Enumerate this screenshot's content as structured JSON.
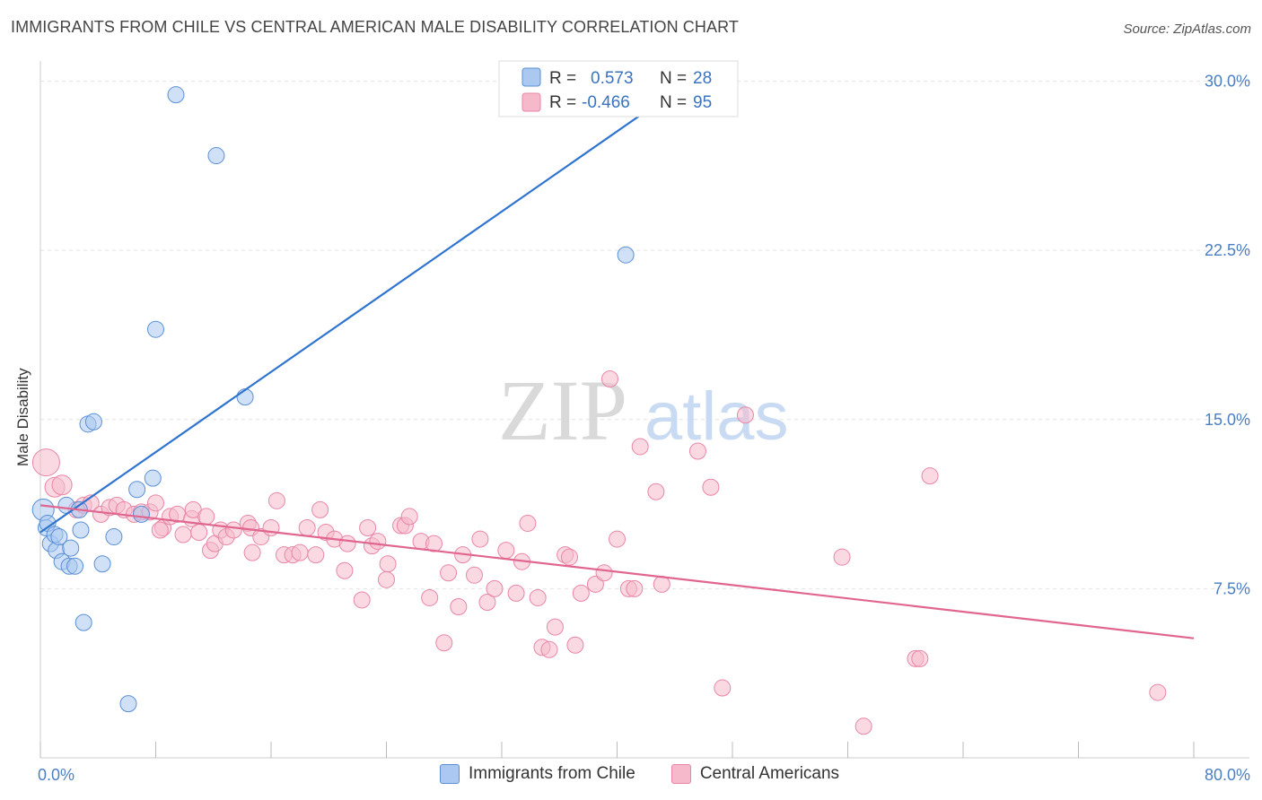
{
  "title": "IMMIGRANTS FROM CHILE VS CENTRAL AMERICAN MALE DISABILITY CORRELATION CHART",
  "source": "Source: ZipAtlas.com",
  "watermark": {
    "zip": "ZIP",
    "atlas": "atlas"
  },
  "legend_top": {
    "rows": [
      {
        "r_label": "R =",
        "r_value": "0.573",
        "n_label": "N =",
        "n_value": "28"
      },
      {
        "r_label": "R =",
        "r_value": "-0.466",
        "n_label": "N =",
        "n_value": "95"
      }
    ]
  },
  "legend_bottom": [
    {
      "label": "Immigrants from Chile"
    },
    {
      "label": "Central Americans"
    }
  ],
  "colors": {
    "chile_fill": "#aac8f0",
    "chile_stroke": "#5a8fd6",
    "chile_line": "#2f74d0",
    "central_fill": "#f6b9cc",
    "central_stroke": "#e986a6",
    "central_line": "#e0668f",
    "axis_text": "#4a7fc4",
    "grid": "#e3e3e3"
  },
  "chart_data": {
    "type": "scatter",
    "xlabel": "",
    "ylabel": "Male Disability",
    "xlim": [
      0,
      80
    ],
    "ylim": [
      0,
      30.5
    ],
    "x_tick_labels": [
      {
        "value": 0,
        "label": "0.0%"
      },
      {
        "value": 80,
        "label": "80.0%"
      }
    ],
    "y_tick_labels": [
      {
        "value": 7.5,
        "label": "7.5%"
      },
      {
        "value": 15,
        "label": "15.0%"
      },
      {
        "value": 22.5,
        "label": "22.5%"
      },
      {
        "value": 30,
        "label": "30.0%"
      }
    ],
    "grid": true,
    "series": [
      {
        "name": "Immigrants from Chile",
        "r": 0.573,
        "n": 28,
        "trend": [
          [
            0,
            10.0
          ],
          [
            45,
            30.0
          ]
        ],
        "points": [
          [
            0.2,
            11.0
          ],
          [
            0.4,
            10.2
          ],
          [
            0.5,
            10.4
          ],
          [
            0.7,
            9.5
          ],
          [
            1.0,
            9.9
          ],
          [
            1.1,
            9.2
          ],
          [
            1.3,
            9.8
          ],
          [
            1.5,
            8.7
          ],
          [
            1.8,
            11.2
          ],
          [
            2.0,
            8.5
          ],
          [
            2.1,
            9.3
          ],
          [
            2.4,
            8.5
          ],
          [
            2.7,
            11.0
          ],
          [
            2.8,
            10.1
          ],
          [
            3.0,
            6.0
          ],
          [
            3.3,
            14.8
          ],
          [
            3.7,
            14.9
          ],
          [
            4.3,
            8.6
          ],
          [
            5.1,
            9.8
          ],
          [
            6.7,
            11.9
          ],
          [
            7.0,
            10.8
          ],
          [
            6.1,
            2.4
          ],
          [
            7.8,
            12.4
          ],
          [
            8.0,
            19.0
          ],
          [
            9.4,
            29.4
          ],
          [
            12.2,
            26.7
          ],
          [
            14.2,
            16.0
          ],
          [
            40.6,
            22.3
          ]
        ]
      },
      {
        "name": "Central Americans",
        "r": -0.466,
        "n": 95,
        "trend": [
          [
            0,
            11.2
          ],
          [
            80,
            5.3
          ]
        ],
        "points": [
          [
            0.4,
            13.1
          ],
          [
            1.0,
            12.0
          ],
          [
            1.5,
            12.1
          ],
          [
            2.5,
            11.0
          ],
          [
            3.0,
            11.2
          ],
          [
            3.5,
            11.3
          ],
          [
            4.2,
            10.8
          ],
          [
            4.8,
            11.1
          ],
          [
            5.3,
            11.2
          ],
          [
            5.8,
            11.0
          ],
          [
            6.5,
            10.8
          ],
          [
            7.0,
            10.9
          ],
          [
            7.6,
            10.9
          ],
          [
            8.0,
            11.3
          ],
          [
            8.5,
            10.2
          ],
          [
            8.3,
            10.1
          ],
          [
            9.0,
            10.7
          ],
          [
            9.5,
            10.8
          ],
          [
            9.9,
            9.9
          ],
          [
            10.5,
            10.6
          ],
          [
            10.6,
            11.0
          ],
          [
            11.0,
            10.0
          ],
          [
            11.5,
            10.7
          ],
          [
            11.8,
            9.2
          ],
          [
            12.1,
            9.5
          ],
          [
            12.5,
            10.1
          ],
          [
            12.9,
            9.8
          ],
          [
            13.4,
            10.1
          ],
          [
            14.4,
            10.4
          ],
          [
            14.6,
            10.2
          ],
          [
            14.7,
            9.1
          ],
          [
            15.3,
            9.8
          ],
          [
            16.0,
            10.2
          ],
          [
            16.4,
            11.4
          ],
          [
            16.9,
            9.0
          ],
          [
            17.5,
            9.0
          ],
          [
            18.0,
            9.1
          ],
          [
            18.5,
            10.2
          ],
          [
            19.1,
            9.0
          ],
          [
            19.4,
            11.0
          ],
          [
            19.8,
            10.0
          ],
          [
            20.4,
            9.7
          ],
          [
            21.1,
            8.3
          ],
          [
            21.3,
            9.5
          ],
          [
            22.3,
            7.0
          ],
          [
            22.7,
            10.2
          ],
          [
            23.0,
            9.4
          ],
          [
            23.4,
            9.6
          ],
          [
            24.1,
            8.6
          ],
          [
            24.0,
            7.9
          ],
          [
            25.0,
            10.3
          ],
          [
            25.3,
            10.3
          ],
          [
            25.6,
            10.7
          ],
          [
            26.4,
            9.6
          ],
          [
            27.0,
            7.1
          ],
          [
            27.3,
            9.5
          ],
          [
            28.0,
            5.1
          ],
          [
            28.3,
            8.2
          ],
          [
            29.0,
            6.7
          ],
          [
            29.3,
            9.0
          ],
          [
            30.1,
            8.1
          ],
          [
            30.5,
            9.7
          ],
          [
            31.0,
            6.9
          ],
          [
            31.5,
            7.5
          ],
          [
            32.3,
            9.2
          ],
          [
            33.0,
            7.3
          ],
          [
            33.4,
            8.7
          ],
          [
            33.8,
            10.4
          ],
          [
            34.5,
            7.1
          ],
          [
            34.8,
            4.9
          ],
          [
            35.3,
            4.8
          ],
          [
            35.7,
            5.8
          ],
          [
            36.4,
            9.0
          ],
          [
            36.7,
            8.9
          ],
          [
            37.1,
            5.0
          ],
          [
            37.5,
            7.3
          ],
          [
            38.5,
            7.7
          ],
          [
            39.1,
            8.2
          ],
          [
            39.5,
            16.8
          ],
          [
            40.0,
            9.7
          ],
          [
            40.8,
            7.5
          ],
          [
            41.2,
            7.5
          ],
          [
            41.6,
            13.8
          ],
          [
            42.7,
            11.8
          ],
          [
            43.1,
            7.7
          ],
          [
            45.6,
            13.6
          ],
          [
            46.5,
            12.0
          ],
          [
            47.3,
            3.1
          ],
          [
            48.9,
            15.2
          ],
          [
            55.6,
            8.9
          ],
          [
            57.1,
            1.4
          ],
          [
            60.7,
            4.4
          ],
          [
            61.0,
            4.4
          ],
          [
            61.7,
            12.5
          ],
          [
            77.5,
            2.9
          ]
        ]
      }
    ]
  }
}
